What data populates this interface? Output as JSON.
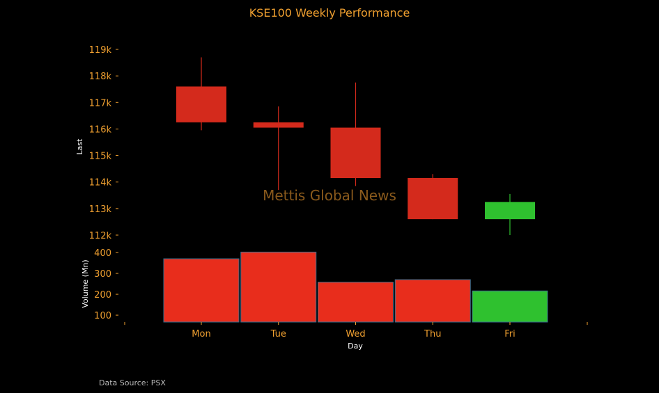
{
  "chart_data": [
    {
      "type": "candlestick",
      "title": "KSE100 Weekly Performance",
      "ylabel": "Last",
      "categories": [
        "Mon",
        "Tue",
        "Wed",
        "Thu",
        "Fri"
      ],
      "ylim": [
        112000,
        119000
      ],
      "yticks": [
        112000,
        113000,
        114000,
        115000,
        116000,
        117000,
        118000,
        119000
      ],
      "ytick_labels": [
        "112k",
        "113k",
        "114k",
        "115k",
        "116k",
        "117k",
        "118k",
        "119k"
      ],
      "candles": [
        {
          "day": "Mon",
          "open": 117600,
          "close": 116250,
          "high": 118700,
          "low": 115950
        },
        {
          "day": "Tue",
          "open": 116250,
          "close": 116050,
          "high": 116850,
          "low": 113700
        },
        {
          "day": "Wed",
          "open": 116050,
          "close": 114150,
          "high": 117750,
          "low": 113850
        },
        {
          "day": "Thu",
          "open": 114150,
          "close": 112600,
          "high": 114300,
          "low": 112600
        },
        {
          "day": "Fri",
          "open": 112600,
          "close": 113250,
          "high": 113550,
          "low": 112000
        }
      ],
      "up_color": "#2fc12f",
      "down_color": "#d42a1c"
    },
    {
      "type": "bar",
      "ylabel": "Volume (Mn)",
      "xlabel": "Day",
      "categories": [
        "Mon",
        "Tue",
        "Wed",
        "Thu",
        "Fri"
      ],
      "values": [
        370,
        402,
        258,
        270,
        216
      ],
      "bar_colors": [
        "#e82d1c",
        "#e82d1c",
        "#e82d1c",
        "#e82d1c",
        "#2fc12f"
      ],
      "ylim": [
        67,
        400
      ],
      "yticks": [
        100,
        200,
        300,
        400
      ],
      "ytick_labels": [
        "100",
        "200",
        "300",
        "400"
      ]
    }
  ],
  "watermark": "Mettis Global News",
  "source": "Data Source: PSX",
  "colors": {
    "background": "#000000",
    "accent": "#f0a030",
    "axis_label": "#ffffff",
    "bar_edge": "#3a6f8f"
  }
}
